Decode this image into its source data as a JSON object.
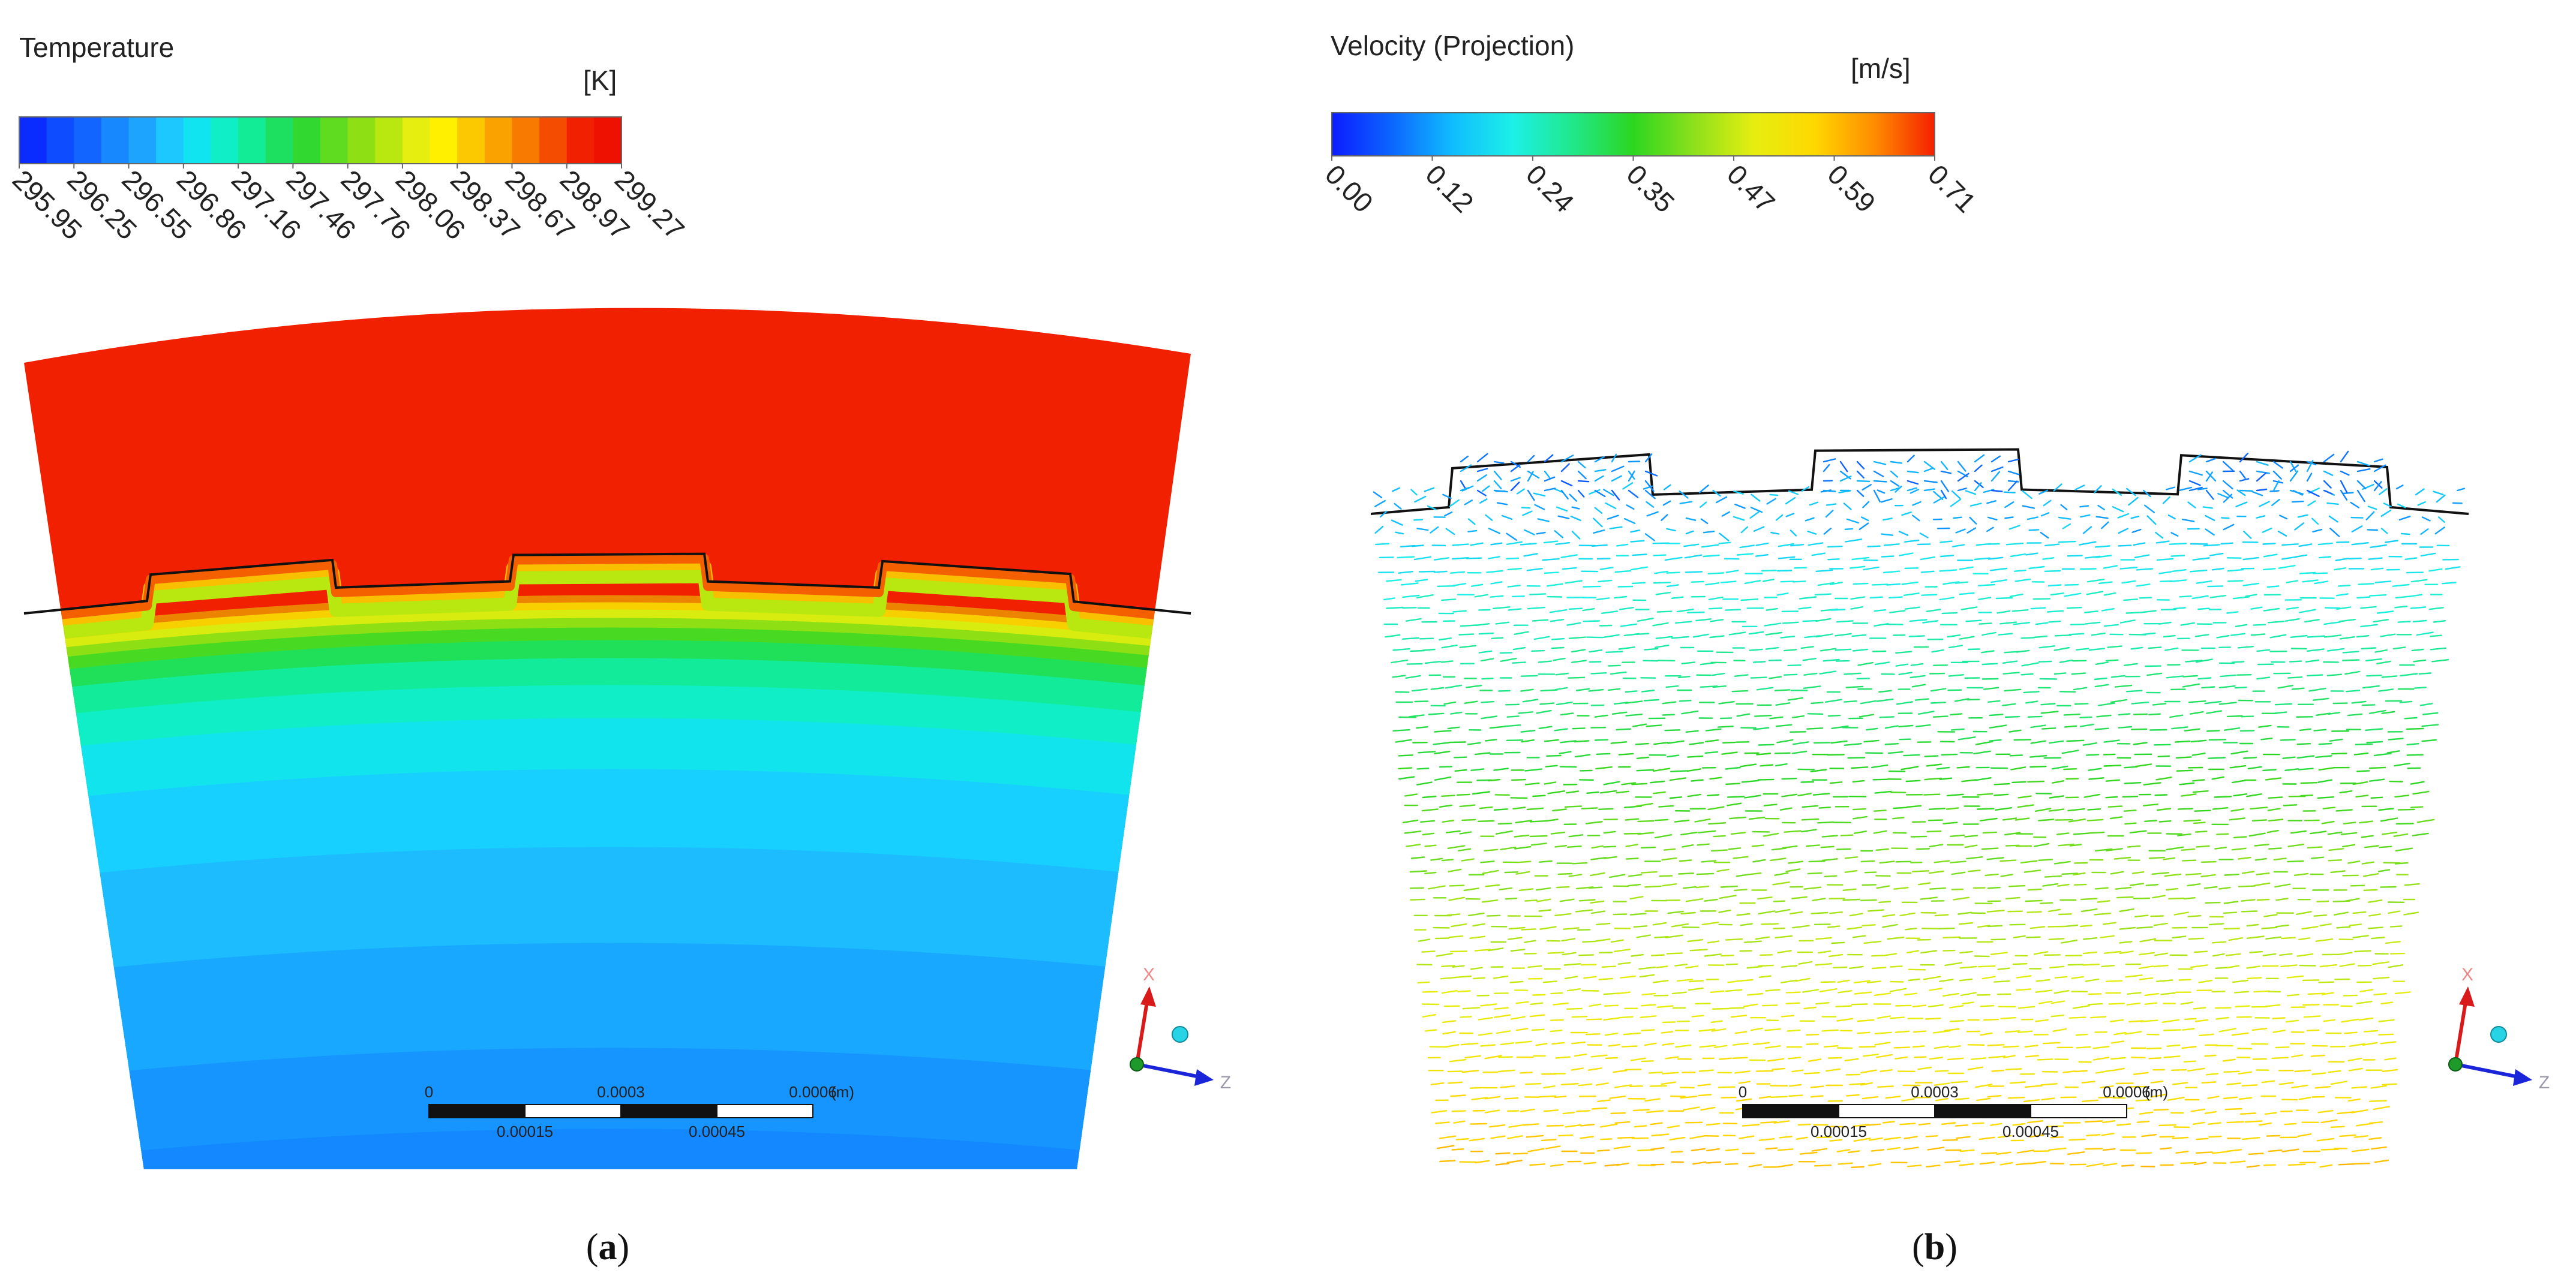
{
  "panel_a": {
    "legend_title": "Temperature",
    "unit": "[K]",
    "colorbar_colors": [
      "#0a2cff",
      "#0d4cff",
      "#1266ff",
      "#1888ff",
      "#1ca4ff",
      "#1cc8ff",
      "#10e4f0",
      "#10eec8",
      "#12ec96",
      "#1ee060",
      "#30d830",
      "#60dc20",
      "#8ee014",
      "#b8e810",
      "#e6ee10",
      "#fff000",
      "#fcc800",
      "#faa200",
      "#f87a00",
      "#f44c00",
      "#f02000",
      "#ee1000"
    ],
    "tick_labels": [
      "295.95",
      "296.25",
      "296.55",
      "296.86",
      "297.16",
      "297.46",
      "297.76",
      "298.06",
      "298.37",
      "298.67",
      "298.97",
      "299.27"
    ],
    "scale_labels_top": [
      "0",
      "0.0003",
      "0.0006"
    ],
    "scale_unit": "(m)",
    "scale_labels_bottom": [
      "0.00015",
      "0.00045"
    ],
    "axis_x": "X",
    "axis_z": "Z",
    "caption": "a"
  },
  "panel_b": {
    "legend_title": "Velocity (Projection)",
    "unit": "[m/s]",
    "colorbar_colors": [
      "#0c1cff",
      "#0c66ff",
      "#10bcff",
      "#1cf0e8",
      "#20e88a",
      "#2cd620",
      "#8ce01c",
      "#e6ee10",
      "#ffd800",
      "#ff8c00",
      "#f42000"
    ],
    "tick_labels": [
      "0.00",
      "0.12",
      "0.24",
      "0.35",
      "0.47",
      "0.59",
      "0.71"
    ],
    "scale_labels_top": [
      "0",
      "0.0003",
      "0.0006"
    ],
    "scale_unit": "(m)",
    "scale_labels_bottom": [
      "0.00015",
      "0.00045"
    ],
    "axis_x": "X",
    "axis_z": "Z",
    "caption": "b"
  }
}
